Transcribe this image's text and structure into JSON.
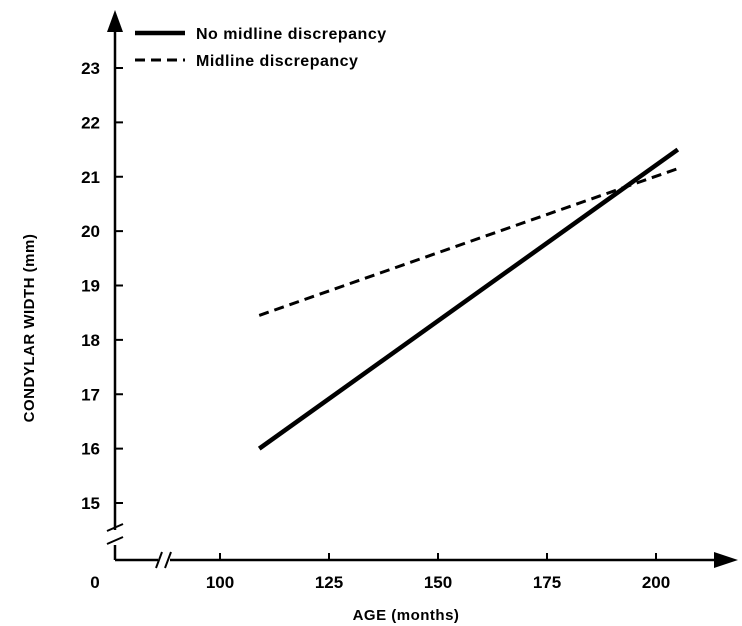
{
  "chart_data": {
    "type": "line",
    "xlabel": "AGE (months)",
    "ylabel": "CONDYLAR WIDTH (mm)",
    "x_ticks": [
      {
        "value": 0,
        "label": "0"
      },
      {
        "value": 100,
        "label": "100"
      },
      {
        "value": 125,
        "label": "125"
      },
      {
        "value": 150,
        "label": "150"
      },
      {
        "value": 175,
        "label": "175"
      },
      {
        "value": 200,
        "label": "200"
      }
    ],
    "y_ticks": [
      {
        "value": 15,
        "label": "15"
      },
      {
        "value": 16,
        "label": "16"
      },
      {
        "value": 17,
        "label": "17"
      },
      {
        "value": 18,
        "label": "18"
      },
      {
        "value": 19,
        "label": "19"
      },
      {
        "value": 20,
        "label": "20"
      },
      {
        "value": 21,
        "label": "21"
      },
      {
        "value": 22,
        "label": "22"
      },
      {
        "value": 23,
        "label": "23"
      }
    ],
    "x_axis_break": true,
    "y_axis_break": true,
    "grid": false,
    "legend_position": "top-left",
    "series": [
      {
        "name": "No midline discrepancy",
        "style": "solid",
        "x": [
          109,
          205
        ],
        "y": [
          16.0,
          21.5
        ]
      },
      {
        "name": "Midline discrepancy",
        "style": "dashed",
        "x": [
          109,
          205
        ],
        "y": [
          18.45,
          21.15
        ]
      }
    ]
  }
}
